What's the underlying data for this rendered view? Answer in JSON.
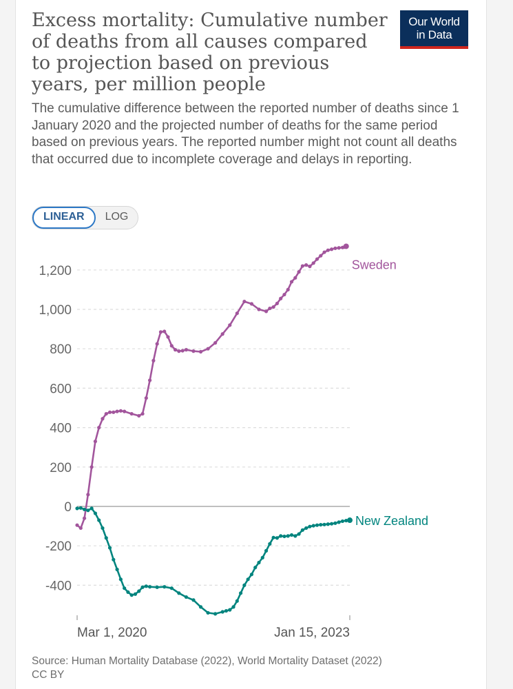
{
  "header": {
    "title": "Excess mortality: Cumulative number of deaths from all causes compared to projection based on previous years, per million people",
    "subtitle": "The cumulative difference between the reported number of deaths since 1 January 2020 and the projected number of deaths for the same period based on previous years. The reported number might not count all deaths that occurred due to incomplete coverage and delays in reporting.",
    "logo_line1": "Our World",
    "logo_line2": "in Data"
  },
  "controls": {
    "linear_label": "LINEAR",
    "log_label": "LOG",
    "selected": "LINEAR"
  },
  "footer": {
    "source": "Source: Human Mortality Database (2022), World Mortality Dataset (2022)",
    "license": "CC BY"
  },
  "colors": {
    "sweden": "#a2559c",
    "new_zealand": "#00847e",
    "grid": "#dddddd",
    "zero_line": "#999999",
    "logo_bg": "#0b2f5b",
    "logo_accent": "#ce261e"
  },
  "chart_data": {
    "type": "line",
    "title": "Excess mortality: Cumulative number of deaths from all causes compared to projection based on previous years, per million people",
    "xlabel": "",
    "ylabel": "",
    "x_start_label": "Mar 1, 2020",
    "x_end_label": "Jan 15, 2023",
    "x_range_weeks": [
      0,
      150
    ],
    "ylim": [
      -560,
      1320
    ],
    "y_ticks": [
      -400,
      -200,
      0,
      200,
      400,
      600,
      800,
      1000,
      1200
    ],
    "y_tick_labels": [
      "-400",
      "-200",
      "0",
      "200",
      "400",
      "600",
      "800",
      "1,000",
      "1,200"
    ],
    "grid": true,
    "legend": "inline labels at line ends",
    "series": [
      {
        "name": "Sweden",
        "x": [
          0,
          2,
          4,
          6,
          8,
          10,
          12,
          14,
          16,
          18,
          20,
          22,
          24,
          26,
          30,
          34,
          36,
          38,
          40,
          42,
          44,
          46,
          48,
          50,
          52,
          54,
          56,
          58,
          60,
          64,
          68,
          72,
          76,
          80,
          84,
          88,
          92,
          96,
          100,
          104,
          106,
          108,
          110,
          112,
          114,
          116,
          118,
          120,
          122,
          124,
          126,
          128,
          130,
          132,
          134,
          136,
          138,
          140,
          142,
          144,
          146,
          147,
          148
        ],
        "values": [
          -95,
          -110,
          -60,
          60,
          200,
          330,
          400,
          445,
          470,
          478,
          478,
          482,
          485,
          482,
          470,
          460,
          470,
          550,
          640,
          740,
          825,
          885,
          888,
          860,
          815,
          795,
          788,
          790,
          795,
          788,
          785,
          800,
          830,
          875,
          920,
          980,
          1040,
          1028,
          1000,
          990,
          1005,
          1012,
          1030,
          1055,
          1075,
          1100,
          1140,
          1160,
          1190,
          1220,
          1225,
          1218,
          1235,
          1255,
          1272,
          1290,
          1300,
          1305,
          1310,
          1312,
          1314,
          1316,
          1320
        ]
      },
      {
        "name": "New Zealand",
        "x": [
          0,
          2,
          4,
          6,
          8,
          10,
          12,
          14,
          16,
          18,
          20,
          22,
          24,
          26,
          28,
          30,
          32,
          34,
          36,
          38,
          40,
          44,
          48,
          52,
          56,
          60,
          64,
          68,
          72,
          76,
          80,
          82,
          84,
          86,
          88,
          90,
          92,
          94,
          96,
          98,
          100,
          102,
          104,
          106,
          108,
          110,
          112,
          114,
          116,
          118,
          120,
          122,
          124,
          126,
          128,
          130,
          132,
          134,
          136,
          138,
          140,
          142,
          144,
          146,
          148,
          150
        ],
        "values": [
          -10,
          -8,
          -15,
          -20,
          -10,
          -35,
          -70,
          -110,
          -160,
          -210,
          -270,
          -320,
          -370,
          -415,
          -435,
          -450,
          -445,
          -430,
          -410,
          -405,
          -408,
          -410,
          -408,
          -415,
          -440,
          -460,
          -475,
          -510,
          -540,
          -545,
          -535,
          -530,
          -525,
          -510,
          -480,
          -440,
          -400,
          -370,
          -345,
          -310,
          -285,
          -260,
          -225,
          -190,
          -158,
          -160,
          -150,
          -152,
          -150,
          -145,
          -150,
          -140,
          -120,
          -110,
          -102,
          -98,
          -95,
          -93,
          -92,
          -90,
          -88,
          -85,
          -80,
          -75,
          -72,
          -70
        ]
      }
    ]
  }
}
